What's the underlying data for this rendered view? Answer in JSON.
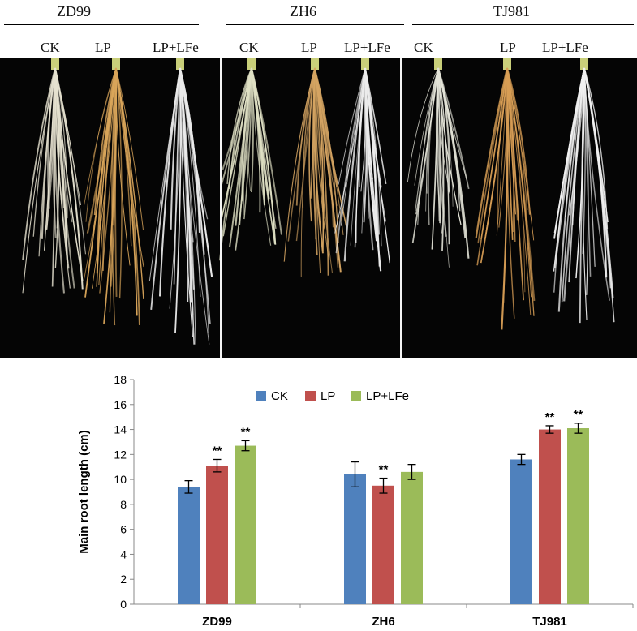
{
  "photo_panel": {
    "groups": [
      {
        "name": "ZD99",
        "treatments": [
          "CK",
          "LP",
          "LP+LFe"
        ]
      },
      {
        "name": "ZH6",
        "treatments": [
          "CK",
          "LP",
          "LP+LFe"
        ]
      },
      {
        "name": "TJ981",
        "treatments": [
          "CK",
          "LP",
          "LP+LFe"
        ]
      }
    ]
  },
  "colors": {
    "CK": "#4f81bd",
    "LP": "#c0504d",
    "LP+LFe": "#9bbb59"
  },
  "chart_data": {
    "type": "bar",
    "categories": [
      "ZD99",
      "ZH6",
      "TJ981"
    ],
    "ylabel": "Main root length (cm)",
    "xlabel": "",
    "ylim": [
      0,
      18
    ],
    "yticks": [
      "0",
      "2",
      "4",
      "6",
      "8",
      "10",
      "12",
      "14",
      "16",
      "18"
    ],
    "legend_position": "top",
    "grid": false,
    "series": [
      {
        "name": "CK",
        "values": [
          9.4,
          10.4,
          11.6
        ],
        "errors": [
          0.5,
          1.0,
          0.4
        ],
        "significance": [
          "",
          "",
          ""
        ]
      },
      {
        "name": "LP",
        "values": [
          11.1,
          9.5,
          14.0
        ],
        "errors": [
          0.5,
          0.6,
          0.3
        ],
        "significance": [
          "**",
          "**",
          "**"
        ]
      },
      {
        "name": "LP+LFe",
        "values": [
          12.7,
          10.6,
          14.1
        ],
        "errors": [
          0.4,
          0.6,
          0.4
        ],
        "significance": [
          "**",
          "",
          "**"
        ]
      }
    ]
  }
}
